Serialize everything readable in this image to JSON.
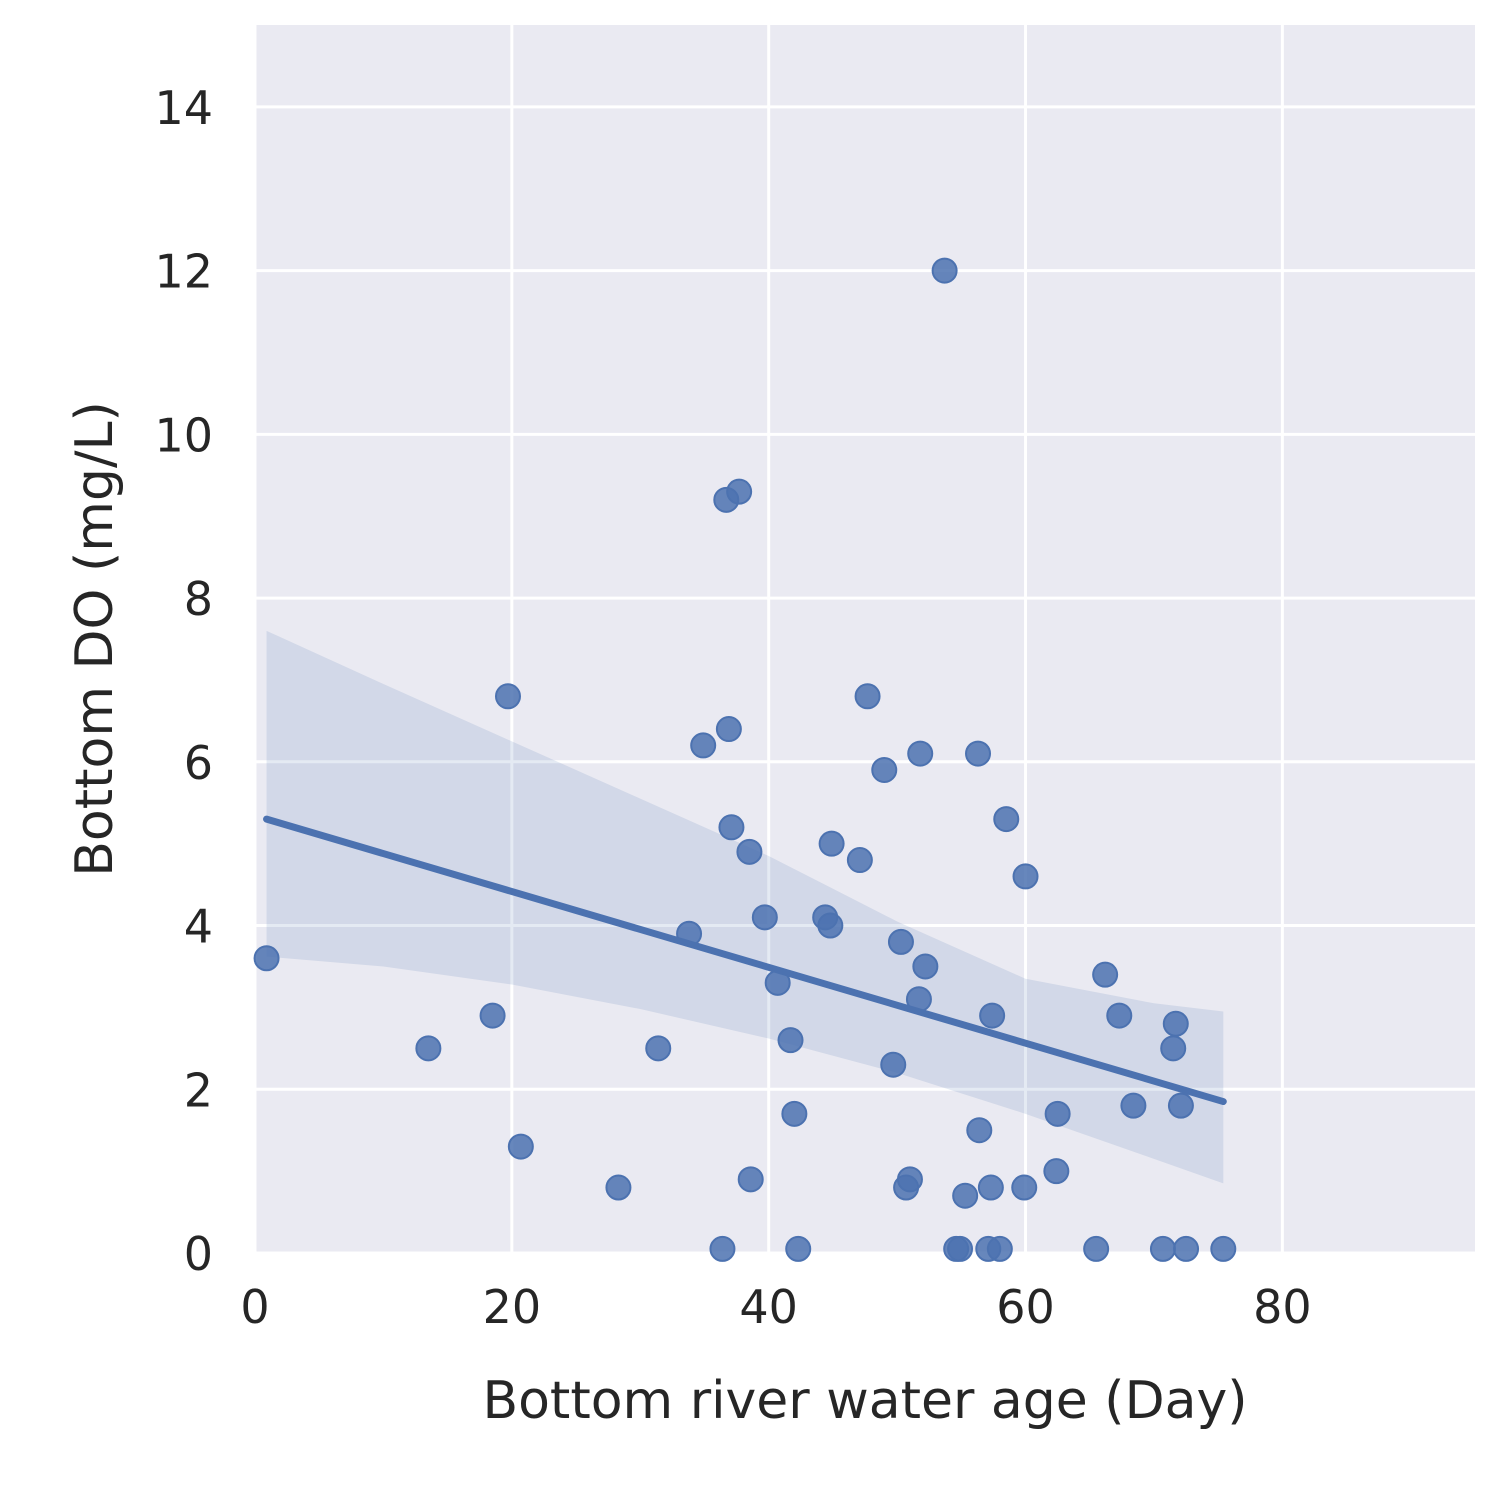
{
  "chart_data": {
    "type": "scatter",
    "title": "",
    "xlabel": "Bottom river water age (Day)",
    "ylabel": "Bottom DO (mg/L)",
    "xlim": [
      0,
      95
    ],
    "ylim": [
      0,
      15
    ],
    "xticks": [
      "0",
      "20",
      "40",
      "60",
      "80"
    ],
    "yticks": [
      "0",
      "2",
      "4",
      "6",
      "8",
      "10",
      "12",
      "14"
    ],
    "grid": true,
    "legend": "none",
    "colors": {
      "background": "#eaeaf2",
      "grid": "#ffffff",
      "points": "#4c72b0",
      "regression_line": "#4c72b0",
      "confidence_band": "#4c72b0"
    },
    "points": [
      [
        0.9,
        3.6
      ],
      [
        13.5,
        2.5
      ],
      [
        18.5,
        2.9
      ],
      [
        19.7,
        6.8
      ],
      [
        20.7,
        1.3
      ],
      [
        28.3,
        0.8
      ],
      [
        31.4,
        2.5
      ],
      [
        33.8,
        3.9
      ],
      [
        34.9,
        6.2
      ],
      [
        36.4,
        0.05
      ],
      [
        36.7,
        9.2
      ],
      [
        36.9,
        6.4
      ],
      [
        37.1,
        5.2
      ],
      [
        37.7,
        9.3
      ],
      [
        38.5,
        4.9
      ],
      [
        38.6,
        0.9
      ],
      [
        39.7,
        4.1
      ],
      [
        40.7,
        3.3
      ],
      [
        41.7,
        2.6
      ],
      [
        42.0,
        1.7
      ],
      [
        42.3,
        0.05
      ],
      [
        44.4,
        4.1
      ],
      [
        44.8,
        4.0
      ],
      [
        44.9,
        5.0
      ],
      [
        47.1,
        4.8
      ],
      [
        47.7,
        6.8
      ],
      [
        49.0,
        5.9
      ],
      [
        49.7,
        2.3
      ],
      [
        50.3,
        3.8
      ],
      [
        50.7,
        0.8
      ],
      [
        51.0,
        0.9
      ],
      [
        51.7,
        3.1
      ],
      [
        51.8,
        6.1
      ],
      [
        52.2,
        3.5
      ],
      [
        53.7,
        12.0
      ],
      [
        54.6,
        0.05
      ],
      [
        54.9,
        0.05
      ],
      [
        55.3,
        0.7
      ],
      [
        56.3,
        6.1
      ],
      [
        56.4,
        1.5
      ],
      [
        57.1,
        0.05
      ],
      [
        57.3,
        0.8
      ],
      [
        57.4,
        2.9
      ],
      [
        58.0,
        0.05
      ],
      [
        58.5,
        5.3
      ],
      [
        59.9,
        0.8
      ],
      [
        60.0,
        4.6
      ],
      [
        62.4,
        1.0
      ],
      [
        62.5,
        1.7
      ],
      [
        65.5,
        0.05
      ],
      [
        66.2,
        3.4
      ],
      [
        67.3,
        2.9
      ],
      [
        68.4,
        1.8
      ],
      [
        70.7,
        0.05
      ],
      [
        71.5,
        2.5
      ],
      [
        71.7,
        2.8
      ],
      [
        72.1,
        1.8
      ],
      [
        72.5,
        0.05
      ],
      [
        75.4,
        0.05
      ]
    ],
    "regression": {
      "x": [
        0.9,
        75.4
      ],
      "y": [
        5.3,
        1.85
      ]
    },
    "confidence_band": {
      "x": [
        0.9,
        10,
        20,
        30,
        40,
        50,
        60,
        70,
        75.4
      ],
      "upper": [
        7.6,
        6.95,
        6.25,
        5.55,
        4.85,
        4.05,
        3.35,
        3.05,
        2.95
      ],
      "lower": [
        3.62,
        3.5,
        3.28,
        2.98,
        2.62,
        2.2,
        1.7,
        1.15,
        0.85
      ]
    }
  }
}
